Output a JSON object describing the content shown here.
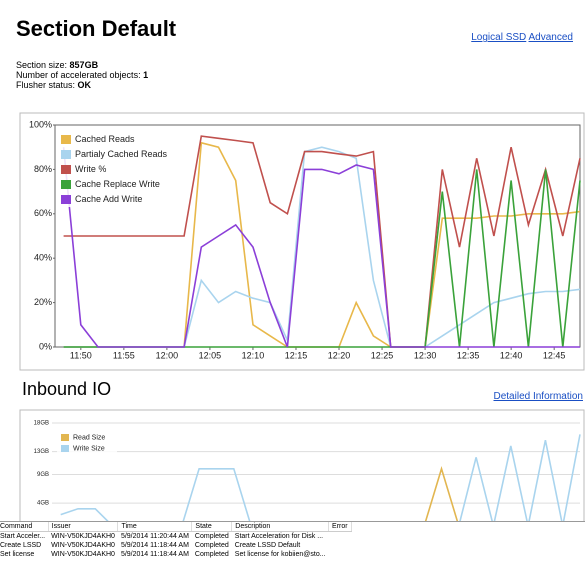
{
  "header": {
    "title": "Section Default",
    "links": [
      "Logical SSD",
      "Advanced"
    ]
  },
  "info": [
    {
      "label": "Section size:",
      "value": "857GB"
    },
    {
      "label": "Number of accelerated objects:",
      "value": "1"
    },
    {
      "label": "Flusher status:",
      "value": "OK"
    }
  ],
  "chart_data": [
    {
      "type": "line",
      "x": [
        708,
        710,
        712,
        714,
        716,
        718,
        720,
        722,
        724,
        726,
        728,
        730,
        732,
        734,
        736,
        738,
        740,
        742,
        744,
        746,
        748,
        750,
        752,
        754,
        756,
        758,
        760,
        762,
        764,
        766,
        768
      ],
      "xlim": [
        707,
        768
      ],
      "xticks": [
        {
          "value": 710,
          "label": "11:50"
        },
        {
          "value": 715,
          "label": "11:55"
        },
        {
          "value": 720,
          "label": "12:00"
        },
        {
          "value": 725,
          "label": "12:05"
        },
        {
          "value": 730,
          "label": "12:10"
        },
        {
          "value": 735,
          "label": "12:15"
        },
        {
          "value": 740,
          "label": "12:20"
        },
        {
          "value": 745,
          "label": "12:25"
        },
        {
          "value": 750,
          "label": "12:30"
        },
        {
          "value": 755,
          "label": "12:35"
        },
        {
          "value": 760,
          "label": "12:40"
        },
        {
          "value": 765,
          "label": "12:45"
        }
      ],
      "ylim": [
        0,
        100
      ],
      "yticks": [
        {
          "value": 0,
          "label": "0%"
        },
        {
          "value": 20,
          "label": "20%"
        },
        {
          "value": 40,
          "label": "40%"
        },
        {
          "value": 60,
          "label": "60%"
        },
        {
          "value": 80,
          "label": "80%"
        },
        {
          "value": 100,
          "label": "100%"
        }
      ],
      "grid": false,
      "legend": "top-left",
      "series": [
        {
          "name": "Cached Reads",
          "color": "#e8b84a",
          "values": [
            0,
            0,
            0,
            0,
            0,
            0,
            0,
            0,
            92,
            90,
            75,
            10,
            5,
            0,
            0,
            0,
            0,
            20,
            5,
            0,
            0,
            0,
            58,
            58,
            58,
            59,
            59,
            60,
            60,
            60,
            61
          ]
        },
        {
          "name": "Partialy Cached Reads",
          "color": "#a9d4ee",
          "values": [
            0,
            0,
            0,
            0,
            0,
            0,
            0,
            0,
            30,
            20,
            25,
            22,
            20,
            3,
            88,
            90,
            88,
            85,
            30,
            0,
            0,
            0,
            5,
            10,
            15,
            20,
            22,
            24,
            25,
            25,
            26
          ]
        },
        {
          "name": "Write %",
          "color": "#c0504d",
          "values": [
            50,
            50,
            50,
            50,
            50,
            50,
            50,
            50,
            95,
            94,
            93,
            92,
            65,
            60,
            88,
            88,
            87,
            86,
            88,
            0,
            0,
            0,
            80,
            45,
            85,
            50,
            90,
            55,
            80,
            50,
            85
          ]
        },
        {
          "name": "Cache Replace Write",
          "color": "#3aa23a",
          "values": [
            0,
            0,
            0,
            0,
            0,
            0,
            0,
            0,
            0,
            0,
            0,
            0,
            0,
            0,
            0,
            0,
            0,
            0,
            0,
            0,
            0,
            0,
            70,
            0,
            80,
            0,
            75,
            0,
            80,
            0,
            75
          ]
        },
        {
          "name": "Cache Add Write",
          "color": "#8b3fd8",
          "values": [
            90,
            10,
            0,
            0,
            0,
            0,
            0,
            0,
            45,
            50,
            55,
            45,
            20,
            0,
            80,
            80,
            78,
            82,
            80,
            0,
            0,
            0,
            0,
            0,
            0,
            0,
            0,
            0,
            0,
            0,
            0
          ]
        }
      ]
    },
    {
      "type": "line",
      "title": "Inbound IO",
      "link": "Detailed Information",
      "x": [
        708,
        710,
        712,
        714,
        716,
        718,
        720,
        722,
        724,
        726,
        728,
        730,
        732,
        734,
        736,
        738,
        740,
        742,
        744,
        746,
        748,
        750,
        752,
        754,
        756,
        758,
        760,
        762,
        764,
        766,
        768
      ],
      "xlim": [
        707,
        768
      ],
      "ylim": [
        0,
        18
      ],
      "yticks": [
        {
          "value": 4,
          "label": "4GB"
        },
        {
          "value": 9,
          "label": "9GB"
        },
        {
          "value": 13,
          "label": "13GB"
        },
        {
          "value": 18,
          "label": "18GB"
        }
      ],
      "grid": true,
      "legend": "top-left",
      "series": [
        {
          "name": "Read Size",
          "color": "#e2b650",
          "values": [
            0,
            0,
            0,
            0,
            0,
            0,
            0,
            0,
            0,
            0,
            0,
            0,
            0,
            0,
            0,
            0,
            0,
            0,
            0,
            0,
            0,
            0,
            10,
            0,
            0,
            0,
            0,
            0,
            0,
            0,
            0
          ]
        },
        {
          "name": "Write Size",
          "color": "#a9d4ee",
          "values": [
            2,
            3,
            3,
            0,
            0,
            0,
            0,
            0,
            10,
            10,
            10,
            0,
            0,
            0,
            0,
            0,
            0,
            0,
            0,
            0,
            0,
            0,
            0,
            0,
            12,
            0,
            14,
            0,
            15,
            0,
            16
          ]
        }
      ]
    }
  ],
  "table": {
    "headers": [
      "Command",
      "Issuer",
      "Time",
      "State",
      "Description",
      "Error"
    ],
    "rows": [
      [
        "Start Acceler...",
        "WIN-V50KJD4AKH0",
        "5/9/2014 11:20:44 AM",
        "Completed",
        "Start Acceleration for Disk ..."
      ],
      [
        "Create LSSD",
        "WIN-V50KJD4AKH0",
        "5/9/2014 11:18:44 AM",
        "Completed",
        "Create LSSD Default"
      ],
      [
        "Set license",
        "WIN-V50KJD4AKH0",
        "5/9/2014 11:18:44 AM",
        "Completed",
        "Set license for kobiien@sto..."
      ]
    ]
  }
}
